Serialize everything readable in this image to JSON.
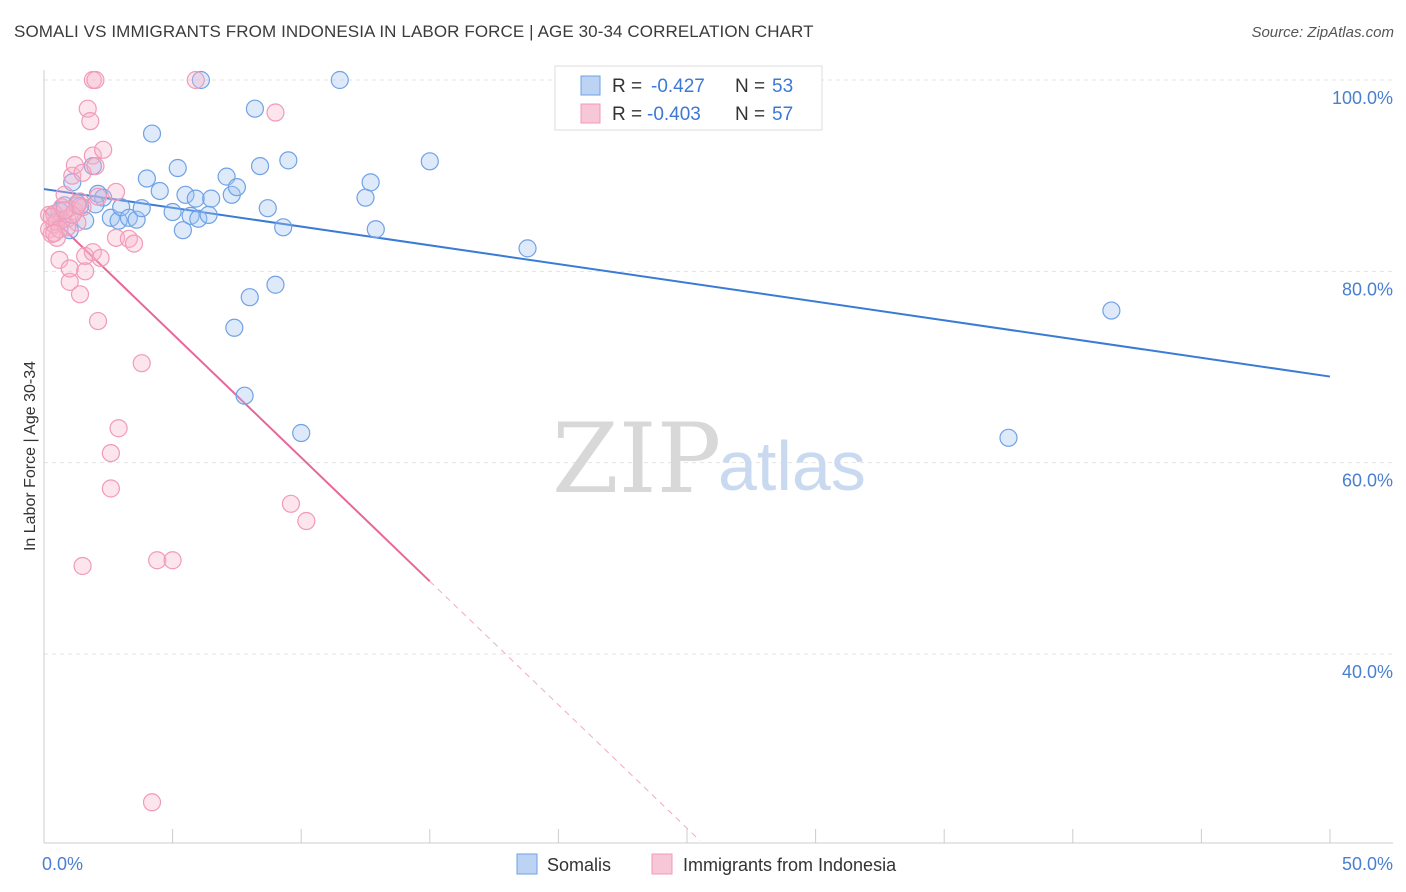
{
  "title": "SOMALI VS IMMIGRANTS FROM INDONESIA IN LABOR FORCE | AGE 30-34 CORRELATION CHART",
  "source": "Source: ZipAtlas.com",
  "watermark": {
    "zip": "ZIP",
    "atlas": "atlas"
  },
  "legend": {
    "rows": [
      {
        "r_label": "R =",
        "r_value": "-0.427",
        "n_label": "N =",
        "n_value": "53"
      },
      {
        "r_label": "R =",
        "r_value": "-0.403",
        "n_label": "N =",
        "n_value": "57"
      }
    ]
  },
  "bottom_legend": [
    "Somalis",
    "Immigrants from Indonesia"
  ],
  "chart_data": {
    "type": "scatter",
    "title": "SOMALI VS IMMIGRANTS FROM INDONESIA IN LABOR FORCE | AGE 30-34 CORRELATION CHART",
    "xlabel": "",
    "ylabel": "In Labor Force | Age 30-34",
    "xlim": [
      0,
      50
    ],
    "ylim": [
      20,
      102
    ],
    "x_tick_labels": [
      "0.0%",
      "50.0%"
    ],
    "y_ticks": [
      40,
      60,
      80,
      100
    ],
    "y_tick_labels": [
      "40.0%",
      "60.0%",
      "80.0%",
      "100.0%"
    ],
    "grid": true,
    "legend_position": "top-center",
    "colors": {
      "somalis": "#6fa2e6",
      "indonesia": "#f29ab7",
      "somalis_line": "#3a7bd5",
      "indonesia_line": "#e8679a"
    },
    "series": [
      {
        "name": "Somalis",
        "r": -0.427,
        "n": 53,
        "trend": {
          "x": [
            0,
            50
          ],
          "y": [
            88.6,
            69.0
          ]
        },
        "points": [
          [
            0.4,
            86.0
          ],
          [
            0.6,
            86.3
          ],
          [
            0.8,
            86.9
          ],
          [
            1.1,
            89.3
          ],
          [
            1.3,
            87.1
          ],
          [
            1.0,
            84.3
          ],
          [
            1.6,
            85.3
          ],
          [
            1.9,
            91.0
          ],
          [
            2.1,
            88.1
          ],
          [
            2.3,
            87.7
          ],
          [
            2.6,
            85.6
          ],
          [
            2.9,
            85.3
          ],
          [
            3.0,
            86.7
          ],
          [
            3.3,
            85.6
          ],
          [
            3.6,
            85.4
          ],
          [
            3.8,
            86.6
          ],
          [
            4.0,
            89.7
          ],
          [
            4.2,
            94.4
          ],
          [
            4.5,
            88.4
          ],
          [
            5.0,
            86.2
          ],
          [
            5.2,
            90.8
          ],
          [
            5.4,
            84.3
          ],
          [
            5.5,
            88.0
          ],
          [
            5.7,
            85.8
          ],
          [
            5.9,
            87.6
          ],
          [
            6.0,
            85.5
          ],
          [
            6.1,
            100.0
          ],
          [
            6.4,
            85.9
          ],
          [
            6.5,
            87.6
          ],
          [
            7.1,
            89.9
          ],
          [
            7.3,
            88.0
          ],
          [
            7.5,
            88.8
          ],
          [
            7.4,
            74.1
          ],
          [
            8.0,
            77.3
          ],
          [
            8.2,
            97.0
          ],
          [
            8.4,
            91.0
          ],
          [
            8.7,
            86.6
          ],
          [
            9.0,
            78.6
          ],
          [
            9.3,
            84.6
          ],
          [
            9.5,
            91.6
          ],
          [
            10.0,
            63.1
          ],
          [
            11.5,
            100.0
          ],
          [
            12.5,
            87.7
          ],
          [
            12.7,
            89.3
          ],
          [
            12.9,
            84.4
          ],
          [
            15.0,
            91.5
          ],
          [
            18.8,
            82.4
          ],
          [
            7.8,
            67.0
          ],
          [
            41.5,
            75.9
          ],
          [
            37.5,
            62.6
          ],
          [
            2.0,
            87.0
          ],
          [
            0.7,
            85.4
          ],
          [
            1.4,
            86.8
          ]
        ]
      },
      {
        "name": "Immigrants from Indonesia",
        "r": -0.403,
        "n": 57,
        "trend": {
          "x": [
            0,
            15
          ],
          "y": [
            86.4,
            47.6
          ]
        },
        "trend_extension": {
          "x": [
            15,
            25.5
          ],
          "y": [
            47.6,
            20.5
          ]
        },
        "points": [
          [
            0.2,
            85.9
          ],
          [
            0.2,
            84.4
          ],
          [
            0.3,
            83.9
          ],
          [
            0.4,
            86.0
          ],
          [
            0.4,
            84.9
          ],
          [
            0.5,
            85.2
          ],
          [
            0.5,
            83.5
          ],
          [
            0.6,
            81.2
          ],
          [
            0.7,
            86.7
          ],
          [
            0.8,
            88.0
          ],
          [
            0.9,
            85.5
          ],
          [
            1.0,
            78.9
          ],
          [
            1.0,
            80.3
          ],
          [
            1.1,
            90.0
          ],
          [
            1.2,
            86.3
          ],
          [
            1.2,
            91.1
          ],
          [
            1.3,
            85.1
          ],
          [
            1.4,
            87.3
          ],
          [
            1.4,
            77.6
          ],
          [
            1.5,
            86.7
          ],
          [
            1.5,
            90.3
          ],
          [
            1.6,
            81.6
          ],
          [
            1.6,
            80.0
          ],
          [
            1.7,
            97.0
          ],
          [
            1.8,
            95.7
          ],
          [
            1.9,
            92.1
          ],
          [
            1.9,
            82.0
          ],
          [
            2.0,
            91.0
          ],
          [
            2.1,
            74.8
          ],
          [
            2.2,
            81.4
          ],
          [
            2.3,
            92.7
          ],
          [
            2.6,
            61.0
          ],
          [
            2.6,
            57.3
          ],
          [
            2.8,
            88.3
          ],
          [
            2.8,
            83.5
          ],
          [
            2.9,
            63.6
          ],
          [
            3.3,
            83.4
          ],
          [
            3.5,
            82.9
          ],
          [
            3.8,
            70.4
          ],
          [
            4.2,
            24.5
          ],
          [
            4.4,
            49.8
          ],
          [
            5.0,
            49.8
          ],
          [
            5.9,
            100.0
          ],
          [
            9.0,
            96.6
          ],
          [
            9.6,
            55.7
          ],
          [
            10.2,
            53.9
          ],
          [
            1.9,
            100.0
          ],
          [
            2.0,
            100.0
          ],
          [
            1.5,
            49.2
          ],
          [
            0.9,
            84.6
          ],
          [
            0.3,
            85.7
          ],
          [
            0.6,
            84.4
          ],
          [
            1.1,
            85.9
          ],
          [
            0.4,
            84.0
          ],
          [
            1.3,
            86.9
          ],
          [
            0.8,
            86.4
          ],
          [
            2.1,
            87.8
          ]
        ]
      }
    ]
  }
}
